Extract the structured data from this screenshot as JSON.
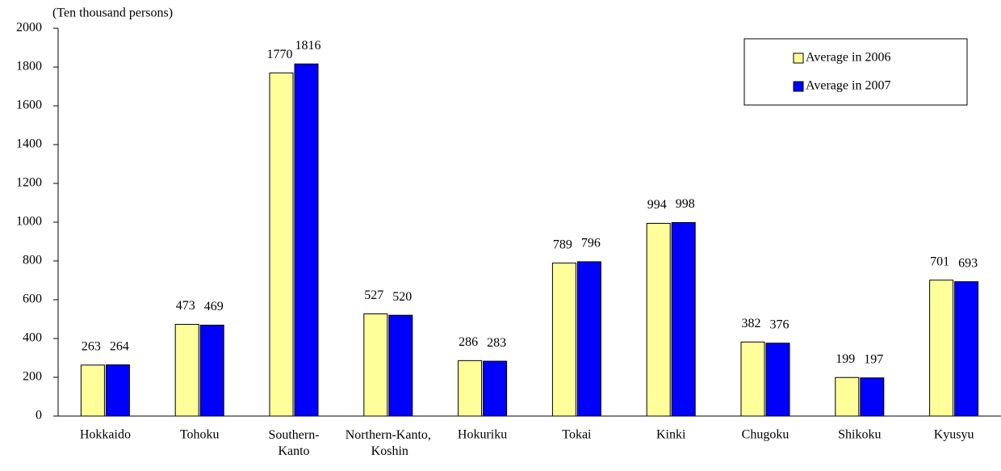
{
  "chart_data": {
    "type": "bar",
    "y_label": "(Ten thousand persons)",
    "categories": [
      "Hokkaido",
      "Tohoku",
      "Southern-Kanto",
      "Northern-Kanto, Koshin",
      "Hokuriku",
      "Tokai",
      "Kinki",
      "Chugoku",
      "Shikoku",
      "Kyusyu"
    ],
    "series": [
      {
        "name": "Average in 2006",
        "color": "#ffff99",
        "values": [
          263,
          473,
          1770,
          527,
          286,
          789,
          994,
          382,
          199,
          701
        ]
      },
      {
        "name": "Average in 2007",
        "color": "#0000ff",
        "values": [
          264,
          469,
          1816,
          520,
          283,
          796,
          998,
          376,
          197,
          693
        ]
      }
    ],
    "ylim": [
      0,
      2000
    ],
    "yticks": [
      0,
      200,
      400,
      600,
      800,
      1000,
      1200,
      1400,
      1600,
      1800,
      2000
    ],
    "grid": false,
    "legend": "top-right"
  }
}
